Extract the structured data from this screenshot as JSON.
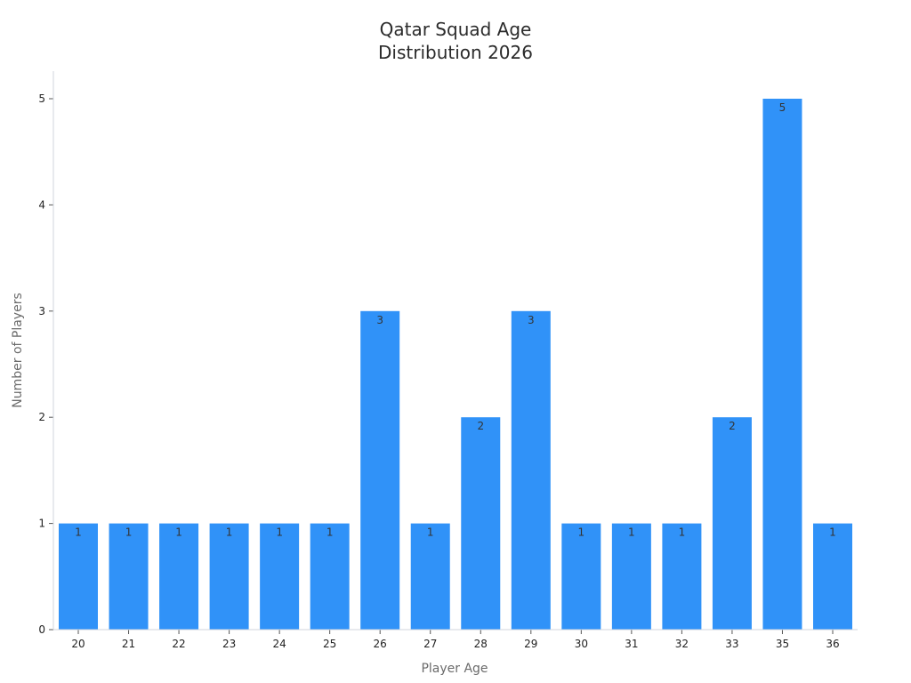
{
  "chart_data": {
    "type": "bar",
    "title": [
      "Qatar Squad Age",
      "Distribution 2026"
    ],
    "xlabel": "Player Age",
    "ylabel": "Number of Players",
    "categories": [
      "20",
      "21",
      "22",
      "23",
      "24",
      "25",
      "26",
      "27",
      "28",
      "29",
      "30",
      "31",
      "32",
      "33",
      "35",
      "36"
    ],
    "values": [
      1,
      1,
      1,
      1,
      1,
      1,
      3,
      1,
      2,
      3,
      1,
      1,
      1,
      2,
      5,
      1
    ],
    "data_labels": [
      "1",
      "1",
      "1",
      "1",
      "1",
      "1",
      "3",
      "1",
      "2",
      "3",
      "1",
      "1",
      "1",
      "2",
      "5",
      "1"
    ],
    "yticks": [
      "0",
      "1",
      "2",
      "3",
      "4",
      "5"
    ],
    "ylim": [
      0,
      5.3
    ],
    "grid": false,
    "legend": "none",
    "colors": {
      "bar": "#3092f8",
      "axis": "#d0d6de"
    }
  }
}
